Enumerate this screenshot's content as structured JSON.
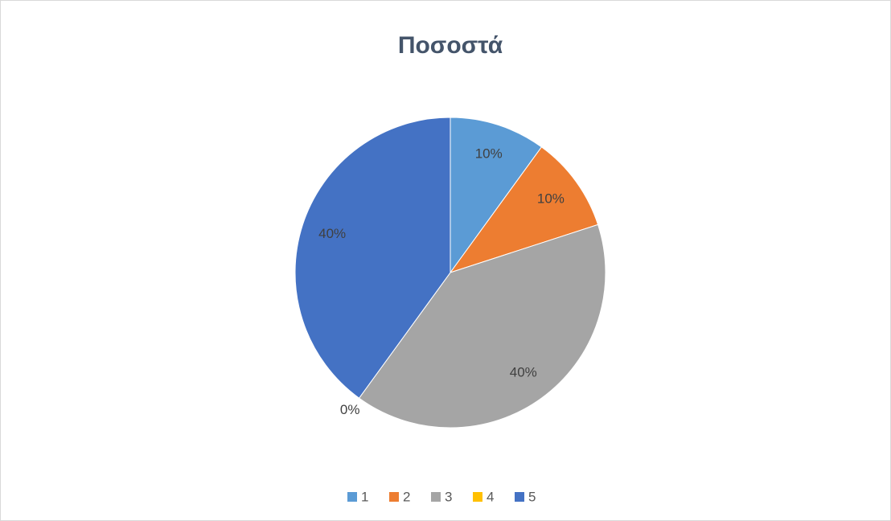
{
  "chart_data": {
    "type": "pie",
    "title": "Ποσοστά",
    "categories": [
      "1",
      "2",
      "3",
      "4",
      "5"
    ],
    "values": [
      10,
      10,
      40,
      0,
      40
    ],
    "value_labels": [
      "10%",
      "10%",
      "40%",
      "0%",
      "40%"
    ],
    "colors": [
      "#5b9bd5",
      "#ed7d31",
      "#a5a5a5",
      "#ffc000",
      "#4472c4"
    ],
    "legend": "bottom"
  }
}
